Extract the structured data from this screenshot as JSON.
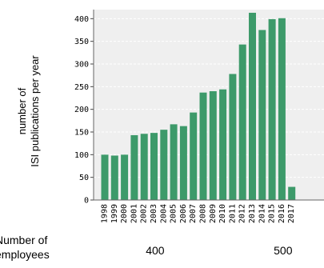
{
  "chart_data": {
    "type": "bar",
    "categories": [
      "1998",
      "1999",
      "2000",
      "2001",
      "2002",
      "2003",
      "2004",
      "2005",
      "2006",
      "2007",
      "2008",
      "2009",
      "2010",
      "2011",
      "2012",
      "2013",
      "2014",
      "2015",
      "2016",
      "2017"
    ],
    "values": [
      100,
      98,
      100,
      143,
      146,
      148,
      155,
      167,
      163,
      193,
      237,
      240,
      244,
      278,
      343,
      413,
      375,
      399,
      401,
      29
    ],
    "ylabel_line1": "number of",
    "ylabel_line2": "ISI publications per year",
    "ylim": [
      0,
      420
    ],
    "yticks": [
      0,
      50,
      100,
      150,
      200,
      250,
      300,
      350,
      400
    ],
    "grid": true,
    "bar_color": "#3d9a6a",
    "plot_bg": "#efefef",
    "grid_color": "#ffffff"
  },
  "employees_axis": {
    "label_line1": "Number of",
    "label_line2": "employees",
    "ticks": [
      {
        "label": "400",
        "at_year": "2001"
      },
      {
        "label": "500",
        "at_year": "2014"
      }
    ]
  }
}
